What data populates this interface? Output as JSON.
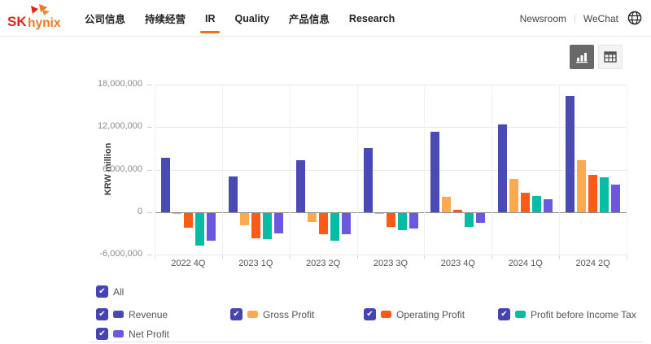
{
  "header": {
    "logo": {
      "sk": "SK",
      "hynix": "hynix"
    },
    "nav": [
      {
        "label": "公司信息",
        "active": false
      },
      {
        "label": "持续经营",
        "active": false
      },
      {
        "label": "IR",
        "active": true
      },
      {
        "label": "Quality",
        "active": false
      },
      {
        "label": "产品信息",
        "active": false
      },
      {
        "label": "Research",
        "active": false
      }
    ],
    "utility": {
      "newsroom": "Newsroom",
      "wechat": "WeChat"
    },
    "icons": {
      "globe": "globe-icon"
    }
  },
  "toolbar": {
    "icons": {
      "chart_view": "bar-chart-icon",
      "table_view": "table-icon"
    },
    "active_view": "chart"
  },
  "chart_data": {
    "type": "bar",
    "title": "",
    "xlabel": "",
    "ylabel": "KRW million",
    "ylim": [
      -6000000,
      18000000
    ],
    "ytick_values": [
      18000000,
      12000000,
      6000000,
      0,
      -6000000
    ],
    "ytick_labels": [
      "18,000,000",
      "12,000,000",
      "6,000,000",
      "0",
      "-6,000,000"
    ],
    "grid": true,
    "legend_position": "bottom",
    "categories": [
      "2022 4Q",
      "2023 1Q",
      "2023 2Q",
      "2023 3Q",
      "2023 4Q",
      "2024 1Q",
      "2024 2Q"
    ],
    "series": [
      {
        "name": "Revenue",
        "color": "#4a4ab4",
        "values": [
          7700000,
          5100000,
          7300000,
          9000000,
          11300000,
          12400000,
          16400000
        ]
      },
      {
        "name": "Gross Profit",
        "color": "#fda950",
        "values": [
          -100000,
          -1700000,
          -1300000,
          -150000,
          2200000,
          4700000,
          7300000
        ]
      },
      {
        "name": "Operating Profit",
        "color": "#fb5a17",
        "values": [
          -2000000,
          -3500000,
          -3000000,
          -1900000,
          350000,
          2800000,
          5300000
        ]
      },
      {
        "name": "Profit before Income Tax",
        "color": "#06bda3",
        "values": [
          -4600000,
          -3700000,
          -3900000,
          -2400000,
          -1900000,
          2300000,
          4900000
        ]
      },
      {
        "name": "Net Profit",
        "color": "#6a58e0",
        "values": [
          -3900000,
          -2800000,
          -3000000,
          -2200000,
          -1400000,
          1800000,
          3900000
        ]
      }
    ]
  },
  "legend": {
    "all": {
      "label": "All",
      "checked": true
    },
    "items": [
      {
        "label": "Revenue",
        "color": "#4a4ab4",
        "checked": true
      },
      {
        "label": "Gross Profit",
        "color": "#fda950",
        "checked": true
      },
      {
        "label": "Operating Profit",
        "color": "#fb5a17",
        "checked": true
      },
      {
        "label": "Profit before Income Tax",
        "color": "#06bda3",
        "checked": true
      },
      {
        "label": "Net Profit",
        "color": "#6a58e0",
        "checked": true
      }
    ]
  },
  "colors": {
    "accent_orange": "#ee6f1d",
    "logo_red": "#e2231a",
    "logo_orange": "#f47725",
    "checkbox": "#4544b2",
    "zero_line": "#8f8f8f",
    "gridline": "#e7e7e7"
  }
}
